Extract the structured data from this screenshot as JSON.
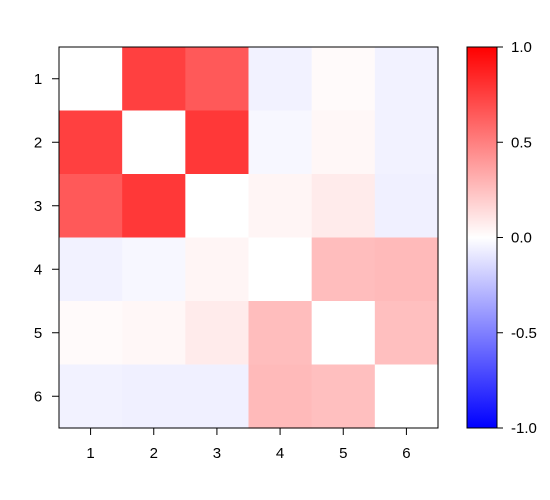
{
  "chart_data": {
    "type": "heatmap",
    "title": "",
    "xlabel": "",
    "ylabel": "",
    "x_labels": [
      "1",
      "2",
      "3",
      "4",
      "5",
      "6"
    ],
    "y_labels": [
      "1",
      "2",
      "3",
      "4",
      "5",
      "6"
    ],
    "values": [
      [
        0.0,
        0.75,
        0.65,
        -0.05,
        0.02,
        -0.05
      ],
      [
        0.75,
        0.0,
        0.78,
        -0.03,
        0.03,
        -0.05
      ],
      [
        0.65,
        0.78,
        0.0,
        0.04,
        0.08,
        -0.06
      ],
      [
        -0.05,
        -0.03,
        0.04,
        0.0,
        0.26,
        0.27
      ],
      [
        0.02,
        0.03,
        0.08,
        0.26,
        0.0,
        0.25
      ],
      [
        -0.05,
        -0.06,
        -0.06,
        0.27,
        0.25,
        0.0
      ]
    ],
    "color_scale": {
      "min": -1.0,
      "max": 1.0,
      "low_color": "#0000ff",
      "mid_color": "#ffffff",
      "high_color": "#ff0000",
      "ticks": [
        "1.0",
        "0.5",
        "0.0",
        "-0.5",
        "-1.0"
      ]
    },
    "legend_position": "right",
    "grid": false
  }
}
